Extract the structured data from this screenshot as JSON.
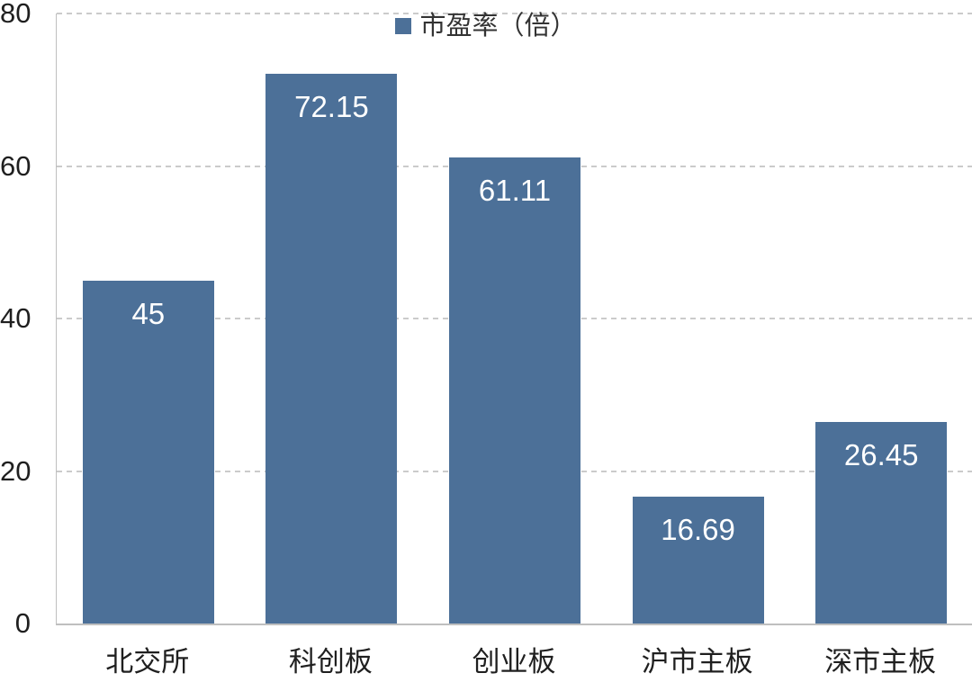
{
  "chart_data": {
    "type": "bar",
    "title": "",
    "legend": "市盈率（倍）",
    "legend_position": "top-center",
    "categories": [
      "北交所",
      "科创板",
      "创业板",
      "沪市主板",
      "深市主板"
    ],
    "values": [
      45,
      72.15,
      61.11,
      16.69,
      26.45
    ],
    "value_labels": [
      "45",
      "72.15",
      "61.11",
      "16.69",
      "26.45"
    ],
    "xlabel": "",
    "ylabel": "",
    "ylim": [
      0,
      80
    ],
    "yticks": [
      0,
      20,
      40,
      60,
      80
    ],
    "grid": "horizontal-dashed",
    "colors": {
      "bar": "#4c7098",
      "value_label": "#ffffff",
      "axis_text": "#1f1f1f",
      "gridline": "#cbcbcb",
      "axis_line": "#bfbfbf"
    }
  }
}
